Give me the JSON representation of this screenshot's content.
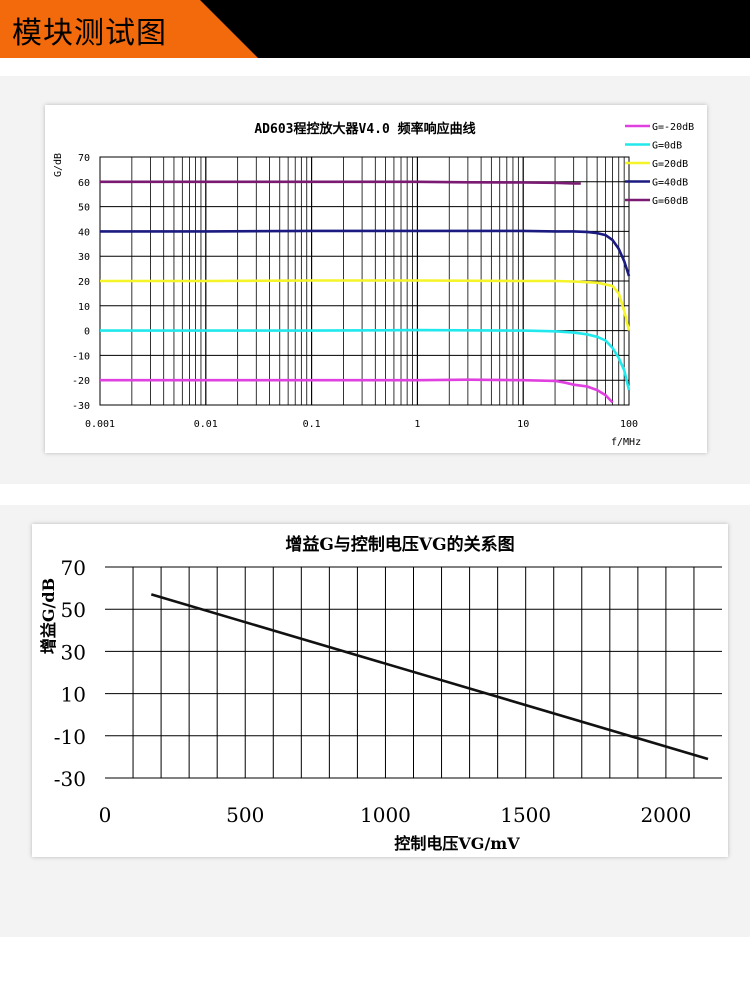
{
  "header": {
    "title": "模块测试图",
    "accent_color": "#f26a0b"
  },
  "chart_data": [
    {
      "type": "line",
      "title": "AD603程控放大器V4.0 频率响应曲线",
      "xlabel": "f/MHz",
      "ylabel": "G/dB",
      "xscale": "log",
      "xlim": [
        0.001,
        100
      ],
      "ylim": [
        -30,
        70
      ],
      "xticks": [
        "0.001",
        "0.01",
        "0.1",
        "1",
        "10",
        "100"
      ],
      "yticks": [
        "70",
        "60",
        "50",
        "40",
        "30",
        "20",
        "10",
        "0",
        "-10",
        "-20",
        "-30"
      ],
      "grid": true,
      "legend_position": "right",
      "series": [
        {
          "name": "G=-20dB",
          "color": "#e040e0",
          "x": [
            0.001,
            0.01,
            0.1,
            1,
            3,
            10,
            20,
            25,
            30,
            40,
            50,
            60,
            70
          ],
          "y": [
            -20,
            -20,
            -20,
            -20,
            -19.8,
            -20,
            -20.3,
            -21,
            -21.8,
            -22.5,
            -24,
            -26,
            -29
          ]
        },
        {
          "name": "G=0dB",
          "color": "#20e8ec",
          "x": [
            0.001,
            0.01,
            0.1,
            1,
            10,
            20,
            30,
            40,
            50,
            60,
            70,
            80,
            90,
            100
          ],
          "y": [
            0,
            0,
            0,
            0.2,
            0,
            -0.3,
            -0.8,
            -1.5,
            -2.5,
            -4,
            -7,
            -11,
            -16,
            -24
          ]
        },
        {
          "name": "G=20dB",
          "color": "#f4f428",
          "x": [
            0.001,
            0.01,
            0.1,
            1,
            10,
            20,
            30,
            50,
            70,
            80,
            90,
            100
          ],
          "y": [
            20,
            20,
            20.2,
            20.2,
            20,
            20,
            19.8,
            19.3,
            18,
            15,
            8,
            0
          ]
        },
        {
          "name": "G=40dB",
          "color": "#1a1a80",
          "x": [
            0.001,
            0.01,
            0.1,
            1,
            10,
            20,
            30,
            40,
            50,
            60,
            70,
            80,
            90,
            100
          ],
          "y": [
            40,
            40,
            40.2,
            40.2,
            40.2,
            40,
            40,
            39.8,
            39.3,
            38.5,
            36.5,
            33,
            28,
            22
          ]
        },
        {
          "name": "G=60dB",
          "color": "#7a1a72",
          "x": [
            0.001,
            0.01,
            0.1,
            1,
            3,
            10,
            20,
            30,
            35
          ],
          "y": [
            60,
            60,
            60,
            60,
            59.8,
            59.7,
            59.6,
            59.3,
            59.3
          ]
        }
      ]
    },
    {
      "type": "line",
      "title": "增益G与控制电压VG的关系图",
      "xlabel": "控制电压VG/mV",
      "ylabel": "增益G/dB",
      "xlim": [
        0,
        2200
      ],
      "ylim": [
        -30,
        70
      ],
      "xticks": [
        "0",
        "500",
        "1000",
        "1500",
        "2000"
      ],
      "yticks": [
        "70",
        "50",
        "30",
        "10",
        "-10",
        "-30"
      ],
      "grid": true,
      "series": [
        {
          "color": "#111111",
          "x": [
            165,
            2150
          ],
          "y": [
            57,
            -21
          ]
        }
      ]
    }
  ]
}
